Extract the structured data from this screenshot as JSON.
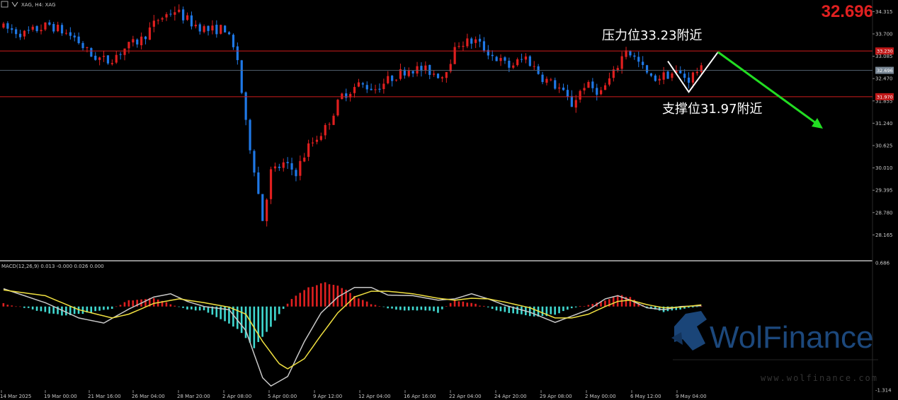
{
  "header": {
    "symbol_label": "XAG, H4: XAG"
  },
  "current_price": "32.696",
  "chart_data": [
    {
      "type": "candlestick",
      "title": "",
      "ylim": [
        27.9,
        34.4
      ],
      "y_ticks": [
        "34.315",
        "33.700",
        "33.085",
        "32.470",
        "31.855",
        "31.240",
        "30.625",
        "30.010",
        "29.395",
        "28.780",
        "28.165"
      ],
      "x_ticks": [
        "14 Mar 2025",
        "19 Mar 00:00",
        "21 Mar 16:00",
        "26 Mar 04:00",
        "28 Mar 20:00",
        "2 Apr 08:00",
        "5 Apr 00:00",
        "9 Apr 12:00",
        "12 Apr 04:00",
        "16 Apr 16:00",
        "22 Apr 04:00",
        "24 Apr 20:00",
        "29 Apr 08:00",
        "2 May 00:00",
        "6 May 12:00",
        "9 May 04:00"
      ],
      "resistance": {
        "value": 33.23,
        "label": "压力位33.23附近",
        "tag": "33.230"
      },
      "support": {
        "value": 31.97,
        "label": "支撑位31.97附近",
        "tag": "31.970"
      },
      "current_line": {
        "value": 32.696,
        "tag": "32.696"
      },
      "path_points": [
        [
          60,
          29.85
        ],
        [
          0,
          33.85
        ],
        [
          20,
          32.5
        ],
        [
          38,
          32.8
        ],
        [
          55,
          32.4
        ],
        [
          85,
          33.45
        ],
        [
          120,
          30.2
        ]
      ],
      "anchors": [
        [
          0,
          33.9
        ],
        [
          6,
          33.7
        ],
        [
          12,
          33.95
        ],
        [
          18,
          33.6
        ],
        [
          22,
          33.1
        ],
        [
          26,
          32.95
        ],
        [
          30,
          33.3
        ],
        [
          34,
          33.55
        ],
        [
          38,
          34.1
        ],
        [
          42,
          34.35
        ],
        [
          46,
          34.0
        ],
        [
          50,
          33.8
        ],
        [
          54,
          33.85
        ],
        [
          57,
          33.0
        ],
        [
          59,
          31.2
        ],
        [
          61,
          30.0
        ],
        [
          63,
          28.6
        ],
        [
          65,
          29.9
        ],
        [
          68,
          30.1
        ],
        [
          71,
          29.9
        ],
        [
          74,
          30.6
        ],
        [
          78,
          31.1
        ],
        [
          82,
          32.0
        ],
        [
          86,
          32.3
        ],
        [
          90,
          32.2
        ],
        [
          94,
          32.5
        ],
        [
          98,
          32.75
        ],
        [
          102,
          32.7
        ],
        [
          106,
          32.55
        ],
        [
          110,
          33.45
        ],
        [
          114,
          33.5
        ],
        [
          118,
          33.1
        ],
        [
          122,
          32.8
        ],
        [
          126,
          33.05
        ],
        [
          130,
          32.5
        ],
        [
          134,
          32.2
        ],
        [
          137,
          31.75
        ],
        [
          140,
          32.3
        ],
        [
          144,
          32.1
        ],
        [
          147,
          32.6
        ],
        [
          150,
          33.3
        ],
        [
          153,
          32.9
        ],
        [
          156,
          32.45
        ],
        [
          159,
          32.55
        ],
        [
          162,
          32.65
        ],
        [
          165,
          32.45
        ],
        [
          167,
          32.7
        ]
      ]
    },
    {
      "type": "macd",
      "label": "MACD(12,26,9) 0.013 -0.000 0.026 0.000",
      "ylim": [
        -1.314,
        0.686
      ],
      "y_ticks": [
        "0.686",
        "-1.314"
      ],
      "hist_anchors": [
        [
          0,
          0.05
        ],
        [
          8,
          -0.06
        ],
        [
          14,
          -0.14
        ],
        [
          20,
          -0.1
        ],
        [
          26,
          -0.04
        ],
        [
          30,
          0.1
        ],
        [
          36,
          0.14
        ],
        [
          40,
          0.04
        ],
        [
          44,
          -0.05
        ],
        [
          48,
          -0.06
        ],
        [
          52,
          -0.2
        ],
        [
          56,
          -0.35
        ],
        [
          60,
          -0.65
        ],
        [
          64,
          -0.32
        ],
        [
          67,
          -0.03
        ],
        [
          69,
          0.12
        ],
        [
          73,
          0.3
        ],
        [
          77,
          0.38
        ],
        [
          81,
          0.3
        ],
        [
          85,
          0.12
        ],
        [
          89,
          0.02
        ],
        [
          92,
          -0.02
        ],
        [
          96,
          -0.06
        ],
        [
          100,
          -0.05
        ],
        [
          104,
          -0.09
        ],
        [
          108,
          0.1
        ],
        [
          112,
          0.06
        ],
        [
          116,
          -0.02
        ],
        [
          120,
          -0.09
        ],
        [
          124,
          -0.12
        ],
        [
          128,
          -0.16
        ],
        [
          132,
          -0.12
        ],
        [
          136,
          -0.03
        ],
        [
          140,
          0.03
        ],
        [
          144,
          0.1
        ],
        [
          147,
          0.18
        ],
        [
          150,
          0.15
        ],
        [
          154,
          -0.03
        ],
        [
          158,
          -0.08
        ],
        [
          162,
          -0.04
        ],
        [
          167,
          0.0
        ]
      ],
      "macd_anchors": [
        [
          0,
          0.28
        ],
        [
          10,
          0.06
        ],
        [
          18,
          -0.18
        ],
        [
          24,
          -0.26
        ],
        [
          30,
          -0.04
        ],
        [
          36,
          0.15
        ],
        [
          40,
          0.2
        ],
        [
          44,
          0.08
        ],
        [
          48,
          0.0
        ],
        [
          54,
          -0.05
        ],
        [
          58,
          -0.38
        ],
        [
          62,
          -1.12
        ],
        [
          64,
          -1.25
        ],
        [
          68,
          -1.1
        ],
        [
          72,
          -0.55
        ],
        [
          76,
          -0.1
        ],
        [
          80,
          0.15
        ],
        [
          84,
          0.3
        ],
        [
          88,
          0.3
        ],
        [
          92,
          0.18
        ],
        [
          98,
          0.17
        ],
        [
          104,
          0.1
        ],
        [
          108,
          0.12
        ],
        [
          112,
          0.2
        ],
        [
          116,
          0.12
        ],
        [
          120,
          0.02
        ],
        [
          126,
          -0.09
        ],
        [
          132,
          -0.25
        ],
        [
          136,
          -0.15
        ],
        [
          140,
          -0.05
        ],
        [
          144,
          0.12
        ],
        [
          147,
          0.17
        ],
        [
          150,
          0.1
        ],
        [
          154,
          -0.02
        ],
        [
          158,
          -0.05
        ],
        [
          162,
          0.0
        ],
        [
          167,
          0.013
        ]
      ],
      "signal_anchors": [
        [
          0,
          0.26
        ],
        [
          10,
          0.17
        ],
        [
          18,
          -0.05
        ],
        [
          26,
          -0.18
        ],
        [
          30,
          -0.12
        ],
        [
          36,
          0.05
        ],
        [
          42,
          0.12
        ],
        [
          48,
          0.06
        ],
        [
          54,
          -0.01
        ],
        [
          58,
          -0.12
        ],
        [
          62,
          -0.55
        ],
        [
          66,
          -0.9
        ],
        [
          68,
          -0.98
        ],
        [
          72,
          -0.82
        ],
        [
          76,
          -0.45
        ],
        [
          80,
          -0.1
        ],
        [
          84,
          0.15
        ],
        [
          88,
          0.24
        ],
        [
          92,
          0.24
        ],
        [
          98,
          0.2
        ],
        [
          104,
          0.13
        ],
        [
          108,
          0.1
        ],
        [
          112,
          0.13
        ],
        [
          116,
          0.12
        ],
        [
          120,
          0.07
        ],
        [
          126,
          -0.02
        ],
        [
          132,
          -0.18
        ],
        [
          136,
          -0.18
        ],
        [
          140,
          -0.12
        ],
        [
          144,
          0.0
        ],
        [
          147,
          0.08
        ],
        [
          150,
          0.1
        ],
        [
          154,
          0.03
        ],
        [
          158,
          -0.02
        ],
        [
          162,
          -0.01
        ],
        [
          167,
          0.026
        ]
      ]
    }
  ],
  "logo": {
    "brand": "WolFinance",
    "url": "www.wolfinance.com"
  },
  "colors": {
    "bull": "#e01f1f",
    "bear": "#1f78e6",
    "hist_pos": "#e02020",
    "hist_neg": "#40d8d0",
    "macd_line": "#c8c8c8",
    "signal_line": "#f0e040",
    "level_line": "#d01c1c",
    "arrow": "#22dd22"
  }
}
